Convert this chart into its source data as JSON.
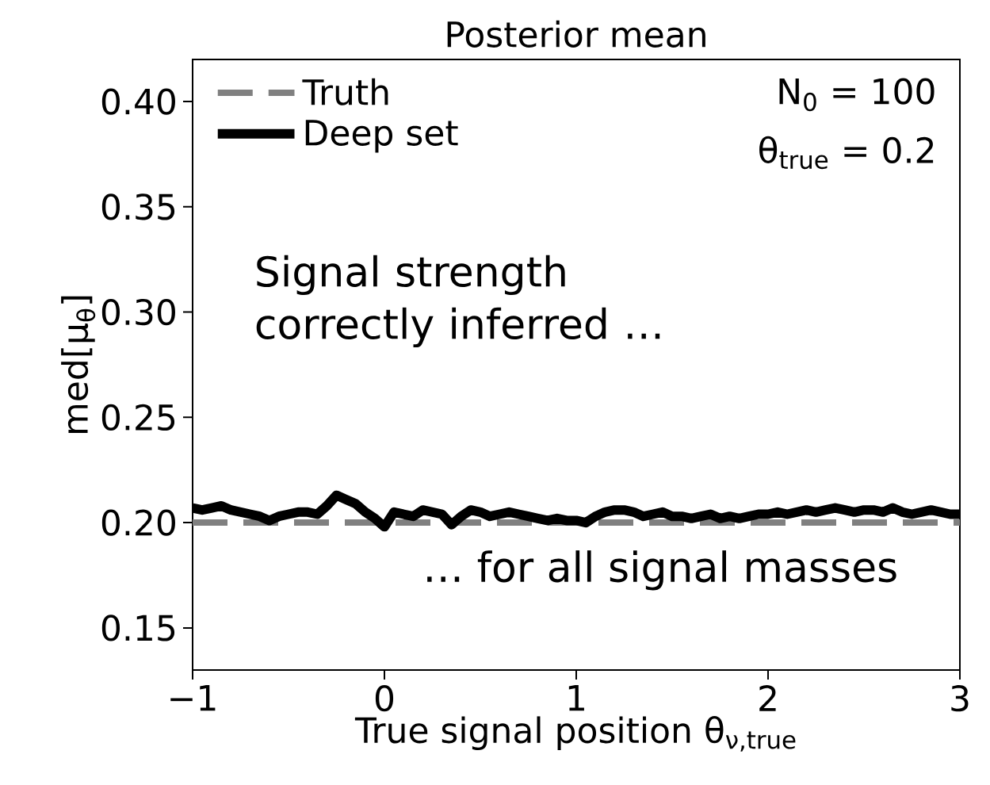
{
  "chart_data": {
    "type": "line",
    "title": "Posterior mean",
    "xlabel": "True signal position θ$_{ν,true}$",
    "ylabel": "med[μ$_{θ}$]",
    "annotations": [
      "N$_{0}$ = 100",
      "θ$_{true}$ = 0.2",
      "Signal strength correctly inferred …",
      "… for all signal masses"
    ],
    "xlim": [
      -1,
      3
    ],
    "ylim": [
      0.13,
      0.42
    ],
    "xticks": [
      {
        "value": -1,
        "label": "−1"
      },
      0,
      1,
      2,
      3
    ],
    "yticks": [
      {
        "value": 0.15,
        "label": "0.15"
      },
      {
        "value": 0.2,
        "label": "0.20"
      },
      {
        "value": 0.25,
        "label": "0.25"
      },
      {
        "value": 0.3,
        "label": "0.30"
      },
      {
        "value": 0.35,
        "label": "0.35"
      },
      {
        "value": 0.4,
        "label": "0.40"
      }
    ],
    "legend": "top left",
    "grid": false,
    "marker": "none",
    "series": [
      {
        "name": "Truth",
        "color": "#808080",
        "line_style": "dashed",
        "x": [
          -1,
          3
        ],
        "values": [
          0.2,
          0.2
        ]
      },
      {
        "name": "Deep set",
        "color": "#000000",
        "line_style": "solid",
        "x": [
          -1.0,
          -0.95,
          -0.9,
          -0.85,
          -0.8,
          -0.75,
          -0.7,
          -0.65,
          -0.6,
          -0.55,
          -0.5,
          -0.45,
          -0.4,
          -0.35,
          -0.3,
          -0.25,
          -0.2,
          -0.15,
          -0.1,
          -0.05,
          0.0,
          0.05,
          0.1,
          0.15,
          0.2,
          0.25,
          0.3,
          0.35,
          0.4,
          0.45,
          0.5,
          0.55,
          0.6,
          0.65,
          0.7,
          0.75,
          0.8,
          0.85,
          0.9,
          0.95,
          1.0,
          1.05,
          1.1,
          1.15,
          1.2,
          1.25,
          1.3,
          1.35,
          1.4,
          1.45,
          1.5,
          1.55,
          1.6,
          1.65,
          1.7,
          1.75,
          1.8,
          1.85,
          1.9,
          1.95,
          2.0,
          2.05,
          2.1,
          2.15,
          2.2,
          2.25,
          2.3,
          2.35,
          2.4,
          2.45,
          2.5,
          2.55,
          2.6,
          2.65,
          2.7,
          2.75,
          2.8,
          2.85,
          2.9,
          2.95,
          3.0
        ],
        "values": [
          0.207,
          0.206,
          0.207,
          0.208,
          0.206,
          0.205,
          0.204,
          0.203,
          0.201,
          0.203,
          0.204,
          0.205,
          0.205,
          0.204,
          0.208,
          0.213,
          0.211,
          0.209,
          0.205,
          0.202,
          0.198,
          0.205,
          0.204,
          0.203,
          0.206,
          0.205,
          0.204,
          0.199,
          0.203,
          0.206,
          0.205,
          0.203,
          0.204,
          0.205,
          0.204,
          0.203,
          0.202,
          0.201,
          0.202,
          0.201,
          0.201,
          0.2,
          0.203,
          0.205,
          0.206,
          0.206,
          0.205,
          0.203,
          0.204,
          0.205,
          0.203,
          0.203,
          0.202,
          0.203,
          0.204,
          0.202,
          0.203,
          0.202,
          0.203,
          0.204,
          0.204,
          0.205,
          0.204,
          0.205,
          0.206,
          0.205,
          0.206,
          0.207,
          0.206,
          0.205,
          0.206,
          0.206,
          0.205,
          0.207,
          0.205,
          0.204,
          0.205,
          0.206,
          0.205,
          0.204,
          0.204
        ]
      }
    ]
  }
}
